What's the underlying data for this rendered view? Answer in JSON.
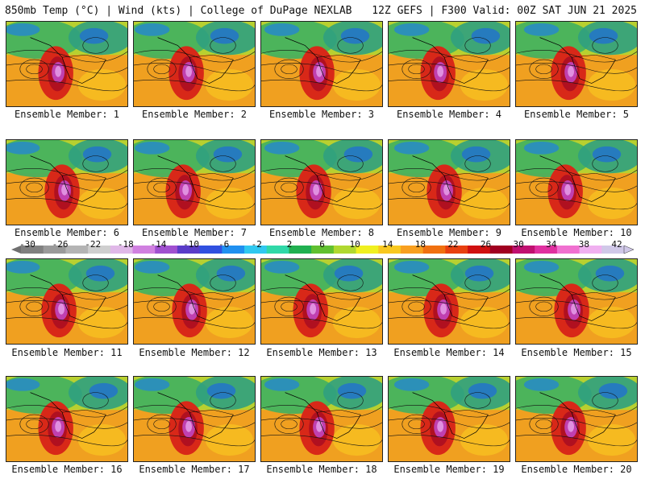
{
  "header": {
    "left": "850mb Temp (°C) | Wind (kts) | College of DuPage NEXLAB",
    "right": "12Z GEFS | F300 Valid: 00Z SAT JUN 21 2025"
  },
  "members": [
    {
      "label": "Ensemble Member: 1"
    },
    {
      "label": "Ensemble Member: 2"
    },
    {
      "label": "Ensemble Member: 3"
    },
    {
      "label": "Ensemble Member: 4"
    },
    {
      "label": "Ensemble Member: 5"
    },
    {
      "label": "Ensemble Member: 6"
    },
    {
      "label": "Ensemble Member: 7"
    },
    {
      "label": "Ensemble Member: 8"
    },
    {
      "label": "Ensemble Member: 9"
    },
    {
      "label": "Ensemble Member: 10"
    },
    {
      "label": "Ensemble Member: 11"
    },
    {
      "label": "Ensemble Member: 12"
    },
    {
      "label": "Ensemble Member: 13"
    },
    {
      "label": "Ensemble Member: 14"
    },
    {
      "label": "Ensemble Member: 15"
    },
    {
      "label": "Ensemble Member: 16"
    },
    {
      "label": "Ensemble Member: 17"
    },
    {
      "label": "Ensemble Member: 18"
    },
    {
      "label": "Ensemble Member: 19"
    },
    {
      "label": "Ensemble Member: 20"
    }
  ],
  "colorbar": {
    "ticks": [
      "-30",
      "-26",
      "-22",
      "-18",
      "-14",
      "-10",
      "-6",
      "-2",
      "2",
      "6",
      "10",
      "14",
      "18",
      "22",
      "26",
      "30",
      "34",
      "38",
      "42"
    ],
    "colors": [
      "#808080",
      "#9a9a9a",
      "#b4b4b4",
      "#cfcfcf",
      "#e0b8e8",
      "#d080e0",
      "#a050d0",
      "#5a3cc8",
      "#3050e0",
      "#2090f0",
      "#30c8f0",
      "#30d8a8",
      "#20b050",
      "#60c030",
      "#b0d830",
      "#f0f020",
      "#f8c820",
      "#f8a020",
      "#f07010",
      "#e84010",
      "#d01010",
      "#a00020",
      "#c01070",
      "#e030a0",
      "#f070d0",
      "#f0b0f0",
      "#d0c8e8"
    ]
  }
}
